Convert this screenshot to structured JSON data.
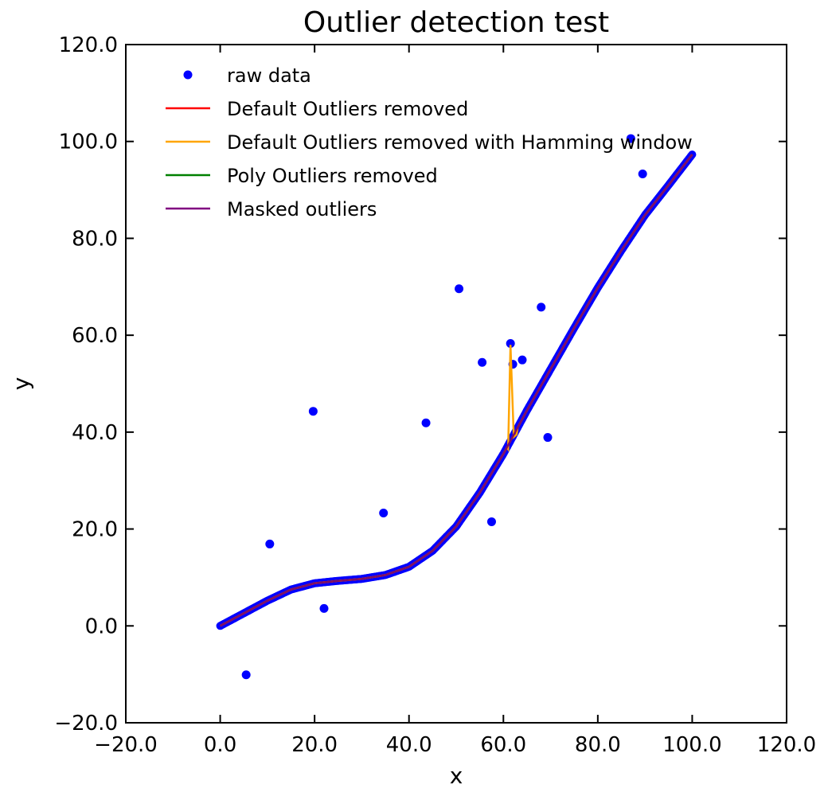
{
  "chart_data": {
    "type": "line",
    "title": "Outlier detection test",
    "xlabel": "x",
    "ylabel": "y",
    "xlim": [
      -20,
      120
    ],
    "ylim": [
      -20,
      120
    ],
    "xticks": [
      -20,
      0,
      20,
      40,
      60,
      80,
      100,
      120
    ],
    "yticks": [
      -20,
      0,
      20,
      40,
      60,
      80,
      100,
      120
    ],
    "xtick_labels": [
      "−20.0",
      "0.0",
      "20.0",
      "40.0",
      "60.0",
      "80.0",
      "100.0",
      "120.0"
    ],
    "ytick_labels": [
      "−20.0",
      "0.0",
      "20.0",
      "40.0",
      "60.0",
      "80.0",
      "100.0",
      "120.0"
    ],
    "grid": false,
    "legend_position": "top-left",
    "curve": {
      "x": [
        0,
        5,
        10,
        15,
        20,
        25,
        30,
        35,
        40,
        45,
        50,
        55,
        60,
        65,
        70,
        75,
        80,
        85,
        90,
        95,
        100
      ],
      "y": [
        0,
        2.6,
        5.2,
        7.5,
        8.8,
        9.3,
        9.7,
        10.5,
        12.2,
        15.5,
        20.5,
        27.5,
        35.5,
        44.5,
        53.0,
        61.5,
        69.8,
        77.5,
        84.8,
        91.0,
        97.3
      ]
    },
    "outliers": {
      "x": [
        5.5,
        10.5,
        19.7,
        22.0,
        34.6,
        43.6,
        50.6,
        55.5,
        57.5,
        61.5,
        62.0,
        64.0,
        68.0,
        69.4,
        87.0,
        89.5
      ],
      "y": [
        -10.1,
        16.9,
        44.3,
        3.6,
        23.3,
        41.9,
        69.6,
        54.4,
        21.5,
        58.3,
        54.0,
        54.9,
        65.8,
        38.9,
        100.6,
        93.3
      ]
    },
    "hamming_spike": {
      "x": [
        61.0,
        61.5,
        62.2,
        62.8
      ],
      "y": [
        36.5,
        58.0,
        39.0,
        39.5
      ]
    },
    "series": [
      {
        "name": "raw data",
        "style": "points",
        "color": "#0000ff"
      },
      {
        "name": "Default Outliers removed",
        "style": "line",
        "color": "#ff0000"
      },
      {
        "name": "Default Outliers removed with Hamming window",
        "style": "line",
        "color": "#ffa500"
      },
      {
        "name": "Poly Outliers removed",
        "style": "line",
        "color": "#008000"
      },
      {
        "name": "Masked outliers",
        "style": "line",
        "color": "#800080"
      }
    ]
  }
}
